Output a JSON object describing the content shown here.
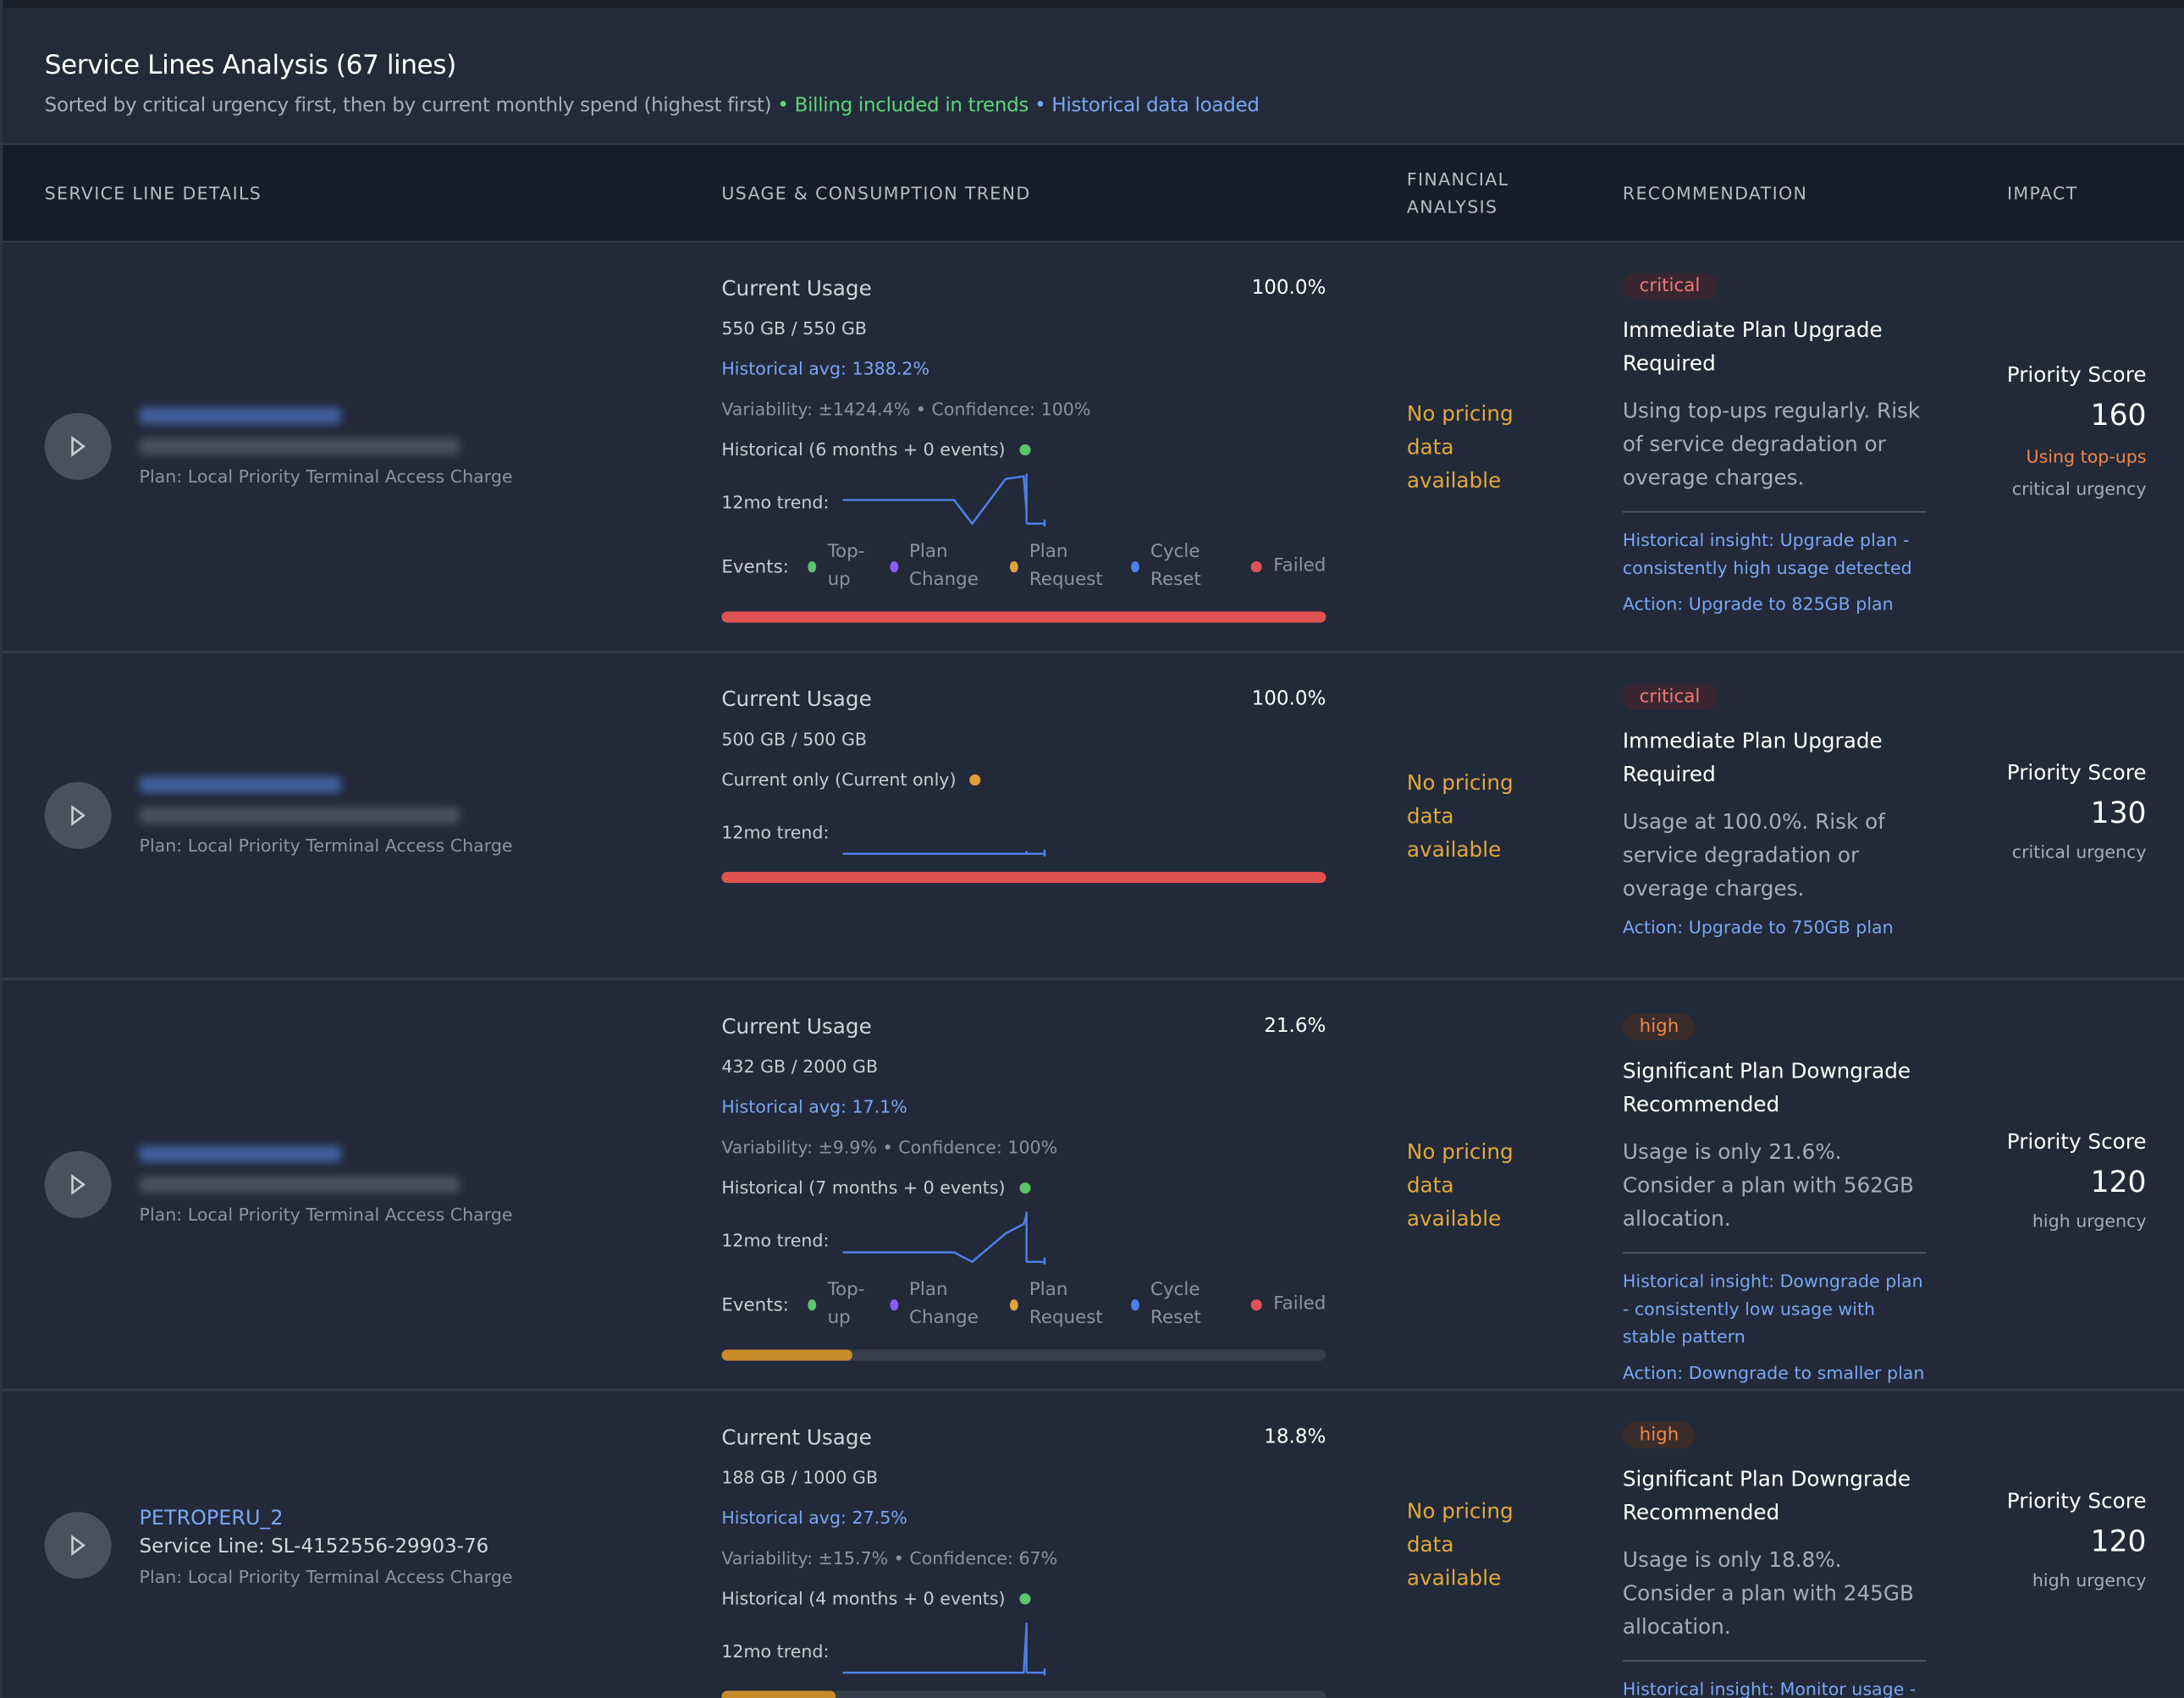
{
  "header": {
    "title": "Service Lines Analysis (67 lines)",
    "subtitle": "Sorted by critical urgency first, then by current monthly spend (highest first)",
    "billing": "• Billing included in trends",
    "historical": "• Historical data loaded"
  },
  "columns": [
    "SERVICE LINE DETAILS",
    "USAGE & CONSUMPTION TREND",
    "FINANCIAL ANALYSIS",
    "RECOMMENDATION",
    "IMPACT"
  ],
  "labels": {
    "current_usage": "Current Usage",
    "trend": "12mo trend:",
    "events": "Events:",
    "no_pricing": [
      "No pricing",
      "data",
      "available"
    ],
    "priority": "Priority Score"
  },
  "events": [
    {
      "label": "Top-up",
      "color": "#5cc46b"
    },
    {
      "label": "Plan Change",
      "color": "#8b5cf6"
    },
    {
      "label": "Plan Request",
      "color": "#e0a03a"
    },
    {
      "label": "Cycle Reset",
      "color": "#4f7fe8"
    },
    {
      "label": "Failed",
      "color": "#e05252"
    }
  ],
  "colors": {
    "critical": "#e05252",
    "high": "#c98a2a",
    "trend": "#4f7fe8"
  },
  "rows": [
    {
      "name_blurred": true,
      "plan": "Plan: Local Priority Terminal Access Charge",
      "usage_pct": "100.0%",
      "usage_fill": 100,
      "usage": "550 GB / 550 GB",
      "hist_avg": "Historical avg: 1388.2%",
      "variability": "Variability: ±1424.4% • Confidence: 100%",
      "historical": "Historical (6 months + 0 events)",
      "hist_dot": "#5cc46b",
      "show_events": true,
      "trend": [
        18,
        18,
        18,
        18,
        0,
        34,
        36,
        10,
        2
      ],
      "bar": "critical",
      "badge": "critical",
      "rec_title": "Immediate Plan Upgrade Required",
      "rec_desc": "Using top-ups regularly. Risk of service degradation or overage charges.",
      "insight": "Historical insight: Upgrade plan - consistently high usage detected",
      "action": "Action: Upgrade to 825GB plan",
      "score": "160",
      "topups": "Using top-ups",
      "urgency": "critical urgency"
    },
    {
      "name_blurred": true,
      "plan": "Plan: Local Priority Terminal Access Charge",
      "usage_pct": "100.0%",
      "usage_fill": 100,
      "usage": "500 GB / 500 GB",
      "historical": "Current only (Current only)",
      "hist_dot": "#e0a03a",
      "show_events": false,
      "trend": [
        1,
        1,
        1,
        1,
        1,
        1,
        1,
        1,
        1
      ],
      "bar": "critical",
      "badge": "critical",
      "rec_title": "Immediate Plan Upgrade Required",
      "rec_desc": "Usage at 100.0%. Risk of service degradation or overage charges.",
      "action": "Action: Upgrade to 750GB plan",
      "score": "130",
      "urgency": "critical urgency"
    },
    {
      "name_blurred": true,
      "plan": "Plan: Local Priority Terminal Access Charge",
      "usage_pct": "21.6%",
      "usage_fill": 21.6,
      "usage": "432 GB / 2000 GB",
      "hist_avg": "Historical avg: 17.1%",
      "variability": "Variability: ±9.9% • Confidence: 100%",
      "historical": "Historical (7 months + 0 events)",
      "hist_dot": "#5cc46b",
      "show_events": true,
      "trend": [
        2,
        2,
        2,
        2,
        0,
        6,
        8,
        10,
        6
      ],
      "bar": "high",
      "badge": "high",
      "rec_title": "Significant Plan Downgrade Recommended",
      "rec_desc": "Usage is only 21.6%. Consider a plan with 562GB allocation.",
      "insight": "Historical insight: Downgrade plan - consistently low usage with stable pattern",
      "action": "Action: Downgrade to smaller plan",
      "score": "120",
      "urgency": "high urgency"
    },
    {
      "name": "PETROPERU_2",
      "service_line": "Service Line: SL-4152556-29903-76",
      "plan": "Plan: Local Priority Terminal Access Charge",
      "usage_pct": "18.8%",
      "usage_fill": 18.8,
      "usage": "188 GB / 1000 GB",
      "hist_avg": "Historical avg: 27.5%",
      "variability": "Variability: ±15.7% • Confidence: 67%",
      "historical": "Historical (4 months + 0 events)",
      "hist_dot": "#5cc46b",
      "show_events": false,
      "trend": [
        0,
        0,
        0,
        0,
        0,
        0,
        0,
        16,
        4
      ],
      "bar": "high",
      "badge": "high",
      "rec_title": "Significant Plan Downgrade Recommended",
      "rec_desc": "Usage is only 18.8%. Consider a plan with 245GB allocation.",
      "insight": "Historical insight: Monitor usage - variable pattern detected",
      "score": "120",
      "urgency": "high urgency"
    }
  ]
}
